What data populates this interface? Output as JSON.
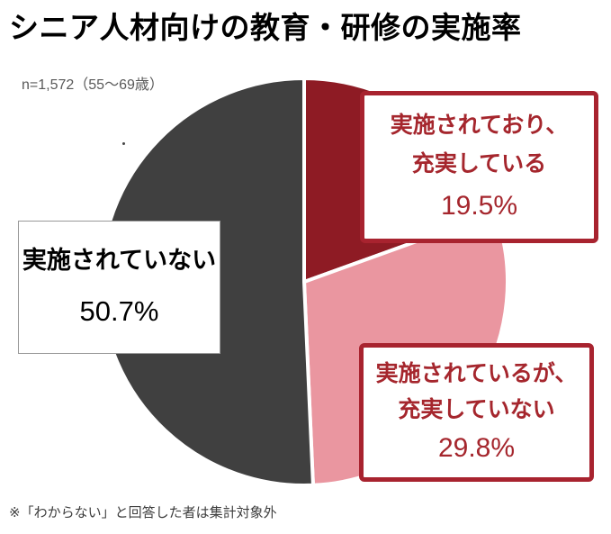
{
  "title": "シニア人材向けの教育・研修の実施率",
  "sample_label": "n=1,572（55～69歳）",
  "footnote": "※「わからない」と回答した者は集計対象外",
  "chart_data": {
    "type": "pie",
    "title": "シニア人材向けの教育・研修の実施率",
    "sample_size": "n=1,572（55～69歳）",
    "start_angle_deg": 0,
    "direction": "clockwise",
    "slices": [
      {
        "label": "実施されており、充実している",
        "value": 19.5,
        "color": "#8e1b24"
      },
      {
        "label": "実施されているが、充実していない",
        "value": 29.8,
        "color": "#ea96a0"
      },
      {
        "label": "実施されていない",
        "value": 50.7,
        "color": "#404040"
      }
    ],
    "separator_color": "#ffffff",
    "footnote": "※「わからない」と回答した者は集計対象外"
  },
  "labels": {
    "implemented_fulfilling": {
      "line1": "実施されており、",
      "line2": "充実している",
      "value": "19.5%"
    },
    "implemented_not_fulfilling": {
      "line1": "実施されているが、",
      "line2": "充実していない",
      "value": "29.8%"
    },
    "not_implemented": {
      "line1": "実施されていない",
      "value": "50.7%"
    }
  },
  "colors": {
    "slice_dark_red": "#8e1b24",
    "slice_pink": "#ea96a0",
    "slice_gray": "#404040",
    "callout_border_red": "#a8232f",
    "callout_text_red": "#a5262d",
    "left_box_border": "#999999",
    "background": "#ffffff"
  }
}
